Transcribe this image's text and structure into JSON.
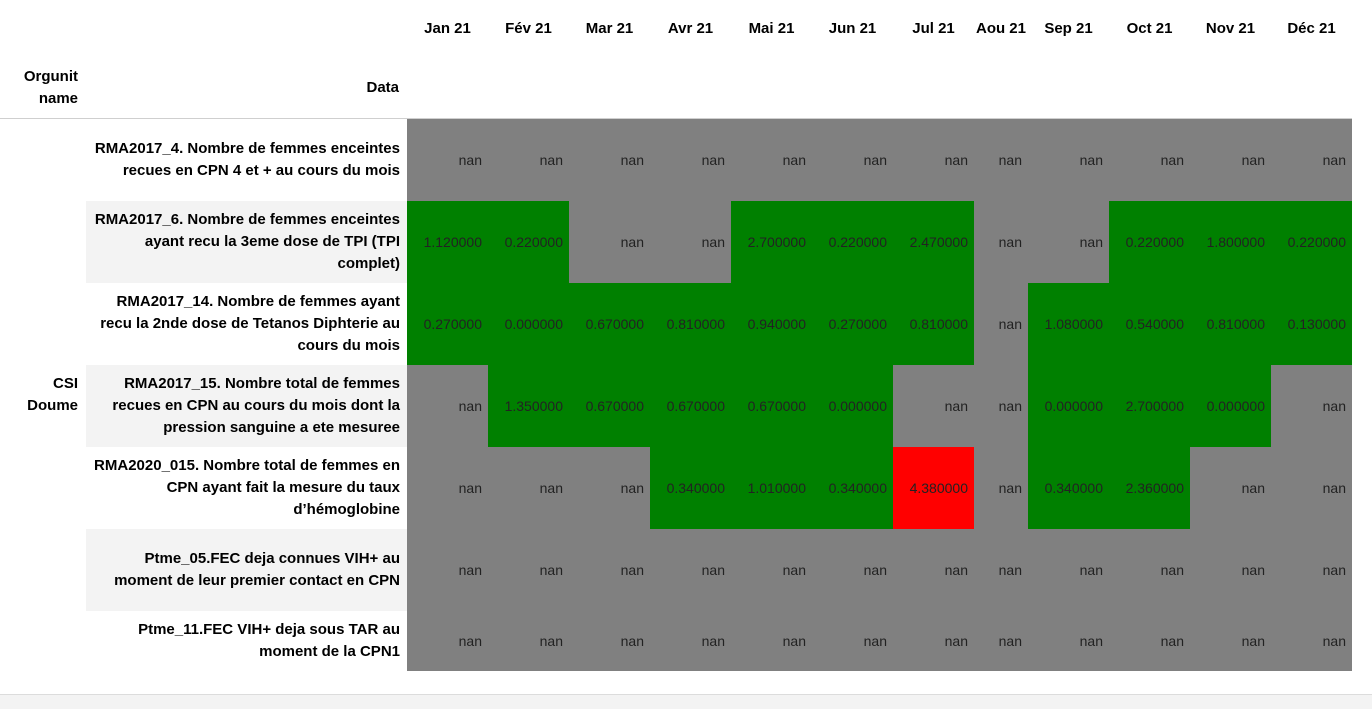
{
  "headers": {
    "orgunit": "Orgunit name",
    "data": "Data",
    "months": [
      "Jan 21",
      "Fév 21",
      "Mar 21",
      "Avr 21",
      "Mai 21",
      "Jun 21",
      "Jul 21",
      "Aou 21",
      "Sep 21",
      "Oct 21",
      "Nov 21",
      "Déc 21"
    ]
  },
  "orgunit": "CSI Doume",
  "colors": {
    "nan": "#808080",
    "green": "#008000",
    "red": "#ff0000",
    "row_band": "#f3f3f3"
  },
  "rows": [
    {
      "label": "RMA2017_4. Nombre de femmes enceintes recues en CPN 4 et + au cours du mois",
      "values": [
        "nan",
        "nan",
        "nan",
        "nan",
        "nan",
        "nan",
        "nan",
        "nan",
        "nan",
        "nan",
        "nan",
        "nan"
      ],
      "status": [
        "nan",
        "nan",
        "nan",
        "nan",
        "nan",
        "nan",
        "nan",
        "nan",
        "nan",
        "nan",
        "nan",
        "nan"
      ]
    },
    {
      "label": "RMA2017_6. Nombre de femmes enceintes ayant recu la 3eme dose de TPI (TPI complet)",
      "values": [
        "1.120000",
        "0.220000",
        "nan",
        "nan",
        "2.700000",
        "0.220000",
        "2.470000",
        "nan",
        "nan",
        "0.220000",
        "1.800000",
        "0.220000"
      ],
      "status": [
        "green",
        "green",
        "nan",
        "nan",
        "green",
        "green",
        "green",
        "nan",
        "nan",
        "green",
        "green",
        "green"
      ]
    },
    {
      "label": "RMA2017_14. Nombre de femmes ayant recu la 2nde dose de Tetanos Diphterie au cours du mois",
      "values": [
        "0.270000",
        "0.000000",
        "0.670000",
        "0.810000",
        "0.940000",
        "0.270000",
        "0.810000",
        "nan",
        "1.080000",
        "0.540000",
        "0.810000",
        "0.130000"
      ],
      "status": [
        "green",
        "green",
        "green",
        "green",
        "green",
        "green",
        "green",
        "nan",
        "green",
        "green",
        "green",
        "green"
      ]
    },
    {
      "label": "RMA2017_15. Nombre total de femmes recues en CPN au cours du mois dont la pression sanguine a ete mesuree",
      "values": [
        "nan",
        "1.350000",
        "0.670000",
        "0.670000",
        "0.670000",
        "0.000000",
        "nan",
        "nan",
        "0.000000",
        "2.700000",
        "0.000000",
        "nan"
      ],
      "status": [
        "nan",
        "green",
        "green",
        "green",
        "green",
        "green",
        "nan",
        "nan",
        "green",
        "green",
        "green",
        "nan"
      ]
    },
    {
      "label": "RMA2020_015. Nombre total de femmes en CPN ayant fait la mesure du taux d’hémoglobine",
      "values": [
        "nan",
        "nan",
        "nan",
        "0.340000",
        "1.010000",
        "0.340000",
        "4.380000",
        "nan",
        "0.340000",
        "2.360000",
        "nan",
        "nan"
      ],
      "status": [
        "nan",
        "nan",
        "nan",
        "green",
        "green",
        "green",
        "red",
        "nan",
        "green",
        "green",
        "nan",
        "nan"
      ]
    },
    {
      "label": "Ptme_05.FEC deja connues VIH+ au moment de leur premier contact en CPN",
      "values": [
        "nan",
        "nan",
        "nan",
        "nan",
        "nan",
        "nan",
        "nan",
        "nan",
        "nan",
        "nan",
        "nan",
        "nan"
      ],
      "status": [
        "nan",
        "nan",
        "nan",
        "nan",
        "nan",
        "nan",
        "nan",
        "nan",
        "nan",
        "nan",
        "nan",
        "nan"
      ]
    },
    {
      "label": "Ptme_11.FEC VIH+ deja sous TAR au moment de la CPN1",
      "values": [
        "nan",
        "nan",
        "nan",
        "nan",
        "nan",
        "nan",
        "nan",
        "nan",
        "nan",
        "nan",
        "nan",
        "nan"
      ],
      "status": [
        "nan",
        "nan",
        "nan",
        "nan",
        "nan",
        "nan",
        "nan",
        "nan",
        "nan",
        "nan",
        "nan",
        "nan"
      ]
    }
  ]
}
